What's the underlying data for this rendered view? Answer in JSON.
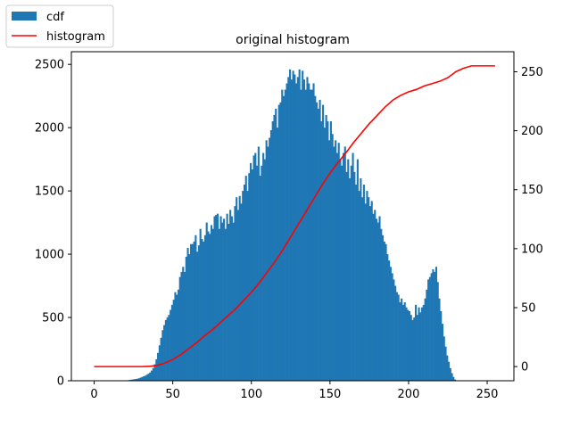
{
  "chart_data": {
    "type": "bar",
    "title": "original histogram",
    "xlabel": "",
    "ylabel": "",
    "xlim": [
      -14.5,
      267
    ],
    "ylim_left": [
      0,
      2600
    ],
    "ylim_right": [
      -12,
      267
    ],
    "x_ticks": [
      0,
      50,
      100,
      150,
      200,
      250
    ],
    "y_ticks_left": [
      0,
      500,
      1000,
      1500,
      2000,
      2500
    ],
    "y_ticks_right": [
      0,
      50,
      100,
      150,
      200,
      250
    ],
    "bar_color": "#1f77b4",
    "line_color": "#ff0000",
    "legend_position": "top-left, outside plot",
    "series": [
      {
        "name": "cdf",
        "type": "bar",
        "axis": "left",
        "x_start": 0,
        "values": [
          0,
          0,
          0,
          0,
          0,
          0,
          0,
          0,
          0,
          0,
          0,
          0,
          0,
          0,
          0,
          0,
          0,
          0,
          0,
          0,
          2,
          4,
          6,
          8,
          10,
          12,
          14,
          16,
          20,
          25,
          30,
          35,
          40,
          48,
          55,
          65,
          80,
          100,
          130,
          170,
          220,
          280,
          340,
          400,
          440,
          480,
          500,
          520,
          560,
          600,
          640,
          700,
          680,
          720,
          820,
          860,
          900,
          860,
          980,
          1050,
          1000,
          1080,
          1080,
          1100,
          1150,
          1020,
          1070,
          1200,
          1120,
          1100,
          1150,
          1250,
          1180,
          1160,
          1230,
          1200,
          1300,
          1310,
          1320,
          1200,
          1300,
          1250,
          1280,
          1200,
          1320,
          1240,
          1350,
          1300,
          1250,
          1380,
          1450,
          1350,
          1460,
          1400,
          1500,
          1550,
          1620,
          1500,
          1640,
          1720,
          1670,
          1780,
          1800,
          1700,
          1850,
          1620,
          1700,
          1800,
          1750,
          1900,
          1850,
          1920,
          1980,
          2050,
          2100,
          2150,
          2000,
          2180,
          2200,
          2300,
          2250,
          2300,
          2350,
          2400,
          2460,
          2380,
          2450,
          2420,
          2350,
          2400,
          2460,
          2300,
          2450,
          2380,
          2300,
          2400,
          2350,
          2300,
          2300,
          2350,
          2250,
          2200,
          2150,
          2220,
          2050,
          2180,
          2000,
          2100,
          2050,
          1900,
          2050,
          1950,
          1850,
          1900,
          1800,
          1880,
          1750,
          1700,
          1800,
          1850,
          1650,
          1750,
          1600,
          1700,
          1800,
          1650,
          1550,
          1750,
          1500,
          1600,
          1450,
          1550,
          1400,
          1500,
          1450,
          1380,
          1420,
          1320,
          1350,
          1280,
          1250,
          1300,
          1200,
          1150,
          1100,
          1080,
          1000,
          950,
          900,
          850,
          800,
          750,
          700,
          680,
          620,
          650,
          600,
          620,
          580,
          560,
          550,
          520,
          480,
          500,
          600,
          520,
          580,
          540,
          580,
          600,
          650,
          720,
          800,
          820,
          850,
          880,
          860,
          900,
          780,
          650,
          550,
          450,
          350,
          270,
          200,
          150,
          100,
          60,
          30,
          10,
          0,
          0,
          0,
          0,
          0,
          0,
          0,
          0,
          0,
          0,
          0,
          0,
          0,
          0,
          0,
          0,
          0
        ]
      },
      {
        "name": "histogram",
        "type": "line",
        "axis": "right",
        "points": [
          [
            0,
            0
          ],
          [
            30,
            0
          ],
          [
            35,
            0.2
          ],
          [
            40,
            1
          ],
          [
            45,
            3
          ],
          [
            50,
            6
          ],
          [
            55,
            10
          ],
          [
            60,
            15
          ],
          [
            65,
            20
          ],
          [
            70,
            26
          ],
          [
            75,
            31
          ],
          [
            80,
            37
          ],
          [
            85,
            43
          ],
          [
            90,
            49
          ],
          [
            95,
            56
          ],
          [
            100,
            63
          ],
          [
            105,
            71
          ],
          [
            110,
            80
          ],
          [
            115,
            89
          ],
          [
            120,
            99
          ],
          [
            125,
            110
          ],
          [
            130,
            121
          ],
          [
            135,
            132
          ],
          [
            140,
            143
          ],
          [
            145,
            154
          ],
          [
            150,
            164
          ],
          [
            155,
            173
          ],
          [
            160,
            181
          ],
          [
            165,
            190
          ],
          [
            170,
            198
          ],
          [
            175,
            206
          ],
          [
            180,
            213
          ],
          [
            185,
            220
          ],
          [
            190,
            226
          ],
          [
            195,
            230
          ],
          [
            200,
            233
          ],
          [
            205,
            235
          ],
          [
            210,
            238
          ],
          [
            215,
            240
          ],
          [
            220,
            242
          ],
          [
            225,
            245
          ],
          [
            230,
            250
          ],
          [
            235,
            253
          ],
          [
            240,
            255
          ],
          [
            245,
            255
          ],
          [
            255,
            255
          ]
        ]
      }
    ]
  }
}
